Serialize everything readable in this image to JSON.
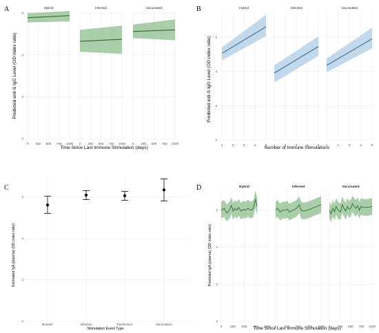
{
  "colors": {
    "green_line": "#2e6b2e",
    "green_band": "#86b886",
    "blue_line": "#3d6c8f",
    "blue_band": "#c2d8ec",
    "point": "#000000",
    "gridline": "#ebebeb"
  },
  "chart_data": [
    {
      "panel": "A",
      "type": "line",
      "facets": [
        "Hybrid",
        "Infected",
        "Vaccinated"
      ],
      "xlabel": "Time Since Last Immune Stimulation (days)",
      "ylabel": "Predicted anti-S IgG Level (OD index ratio)",
      "xlim": [
        0,
        1000
      ],
      "ylim": [
        0,
        6
      ],
      "x_ticks": [
        "0",
        "250",
        "500",
        "750",
        "1000"
      ],
      "y_ticks": [
        "0",
        "2",
        "4",
        "6"
      ],
      "grid": true,
      "series": [
        {
          "facet": "Hybrid",
          "x": [
            0,
            1000
          ],
          "y": [
            5.78,
            5.88
          ],
          "lower": [
            5.55,
            5.6
          ],
          "upper": [
            6.0,
            6.1
          ]
        },
        {
          "facet": "Infected",
          "x": [
            0,
            1000
          ],
          "y": [
            4.65,
            4.75
          ],
          "lower": [
            4.15,
            4.05
          ],
          "upper": [
            5.2,
            5.4
          ]
        },
        {
          "facet": "Vaccinated",
          "x": [
            0,
            1000
          ],
          "y": [
            5.12,
            5.2
          ],
          "lower": [
            4.8,
            4.7
          ],
          "upper": [
            5.45,
            5.7
          ]
        }
      ]
    },
    {
      "panel": "B",
      "type": "line",
      "facets": [
        "Hybrid",
        "Infected",
        "Vaccinated"
      ],
      "xlabel": "Number of Immune Stimulations",
      "ylabel": "Predicted anti-S IgG Level (OD index ratio)",
      "xlim": [
        1,
        5
      ],
      "ylim": [
        0,
        7.4
      ],
      "x_ticks": [
        "1",
        "2",
        "3",
        "4",
        "5"
      ],
      "y_ticks": [
        "0",
        "2",
        "4",
        "6"
      ],
      "grid": true,
      "series": [
        {
          "facet": "Hybrid",
          "x": [
            1,
            5
          ],
          "y": [
            5.05,
            6.6
          ],
          "lower": [
            4.65,
            6.05
          ],
          "upper": [
            5.4,
            7.3
          ]
        },
        {
          "facet": "Infected",
          "x": [
            1,
            5
          ],
          "y": [
            3.9,
            5.45
          ],
          "lower": [
            3.35,
            4.9
          ],
          "upper": [
            4.35,
            6.05
          ]
        },
        {
          "facet": "Vaccinated",
          "x": [
            1,
            5
          ],
          "y": [
            4.35,
            5.9
          ],
          "lower": [
            3.95,
            5.35
          ],
          "upper": [
            4.75,
            6.55
          ]
        }
      ]
    },
    {
      "panel": "C",
      "type": "scatter",
      "xlabel": "Stimulation Event Type",
      "ylabel": "Estimated IgA (plasma) (OD index ratio)",
      "categories": [
        "Booster",
        "Infection",
        "Reinfection",
        "Vaccination"
      ],
      "values": [
        5.62,
        6.1,
        6.07,
        6.35
      ],
      "lower": [
        5.22,
        5.88,
        5.85,
        5.82
      ],
      "upper": [
        6.05,
        6.32,
        6.28,
        6.88
      ],
      "ylim": [
        0,
        7
      ],
      "y_ticks": [
        "0",
        "2",
        "4",
        "6"
      ],
      "grid": true
    },
    {
      "panel": "D",
      "type": "line",
      "facets": [
        "Hybrid",
        "Infected",
        "Vaccinated"
      ],
      "xlabel": "Time Since Last Immune Stimulation (days)",
      "ylabel": "Predicted IgA (plasma) (OD index ratio)",
      "xlim": [
        0,
        1000
      ],
      "ylim": [
        0,
        7
      ],
      "x_ticks": [
        "0",
        "250",
        "500",
        "750",
        "1000"
      ],
      "y_ticks": [
        "0",
        "2",
        "4",
        "6"
      ],
      "grid": true,
      "series": [
        {
          "facet": "Hybrid",
          "x": [
            0,
            60,
            120,
            180,
            220,
            260,
            300,
            340,
            380,
            430,
            480,
            520,
            580,
            640,
            700,
            740,
            780
          ],
          "y": [
            6.0,
            6.1,
            5.85,
            6.0,
            6.25,
            5.95,
            6.1,
            6.0,
            6.15,
            5.95,
            6.05,
            6.0,
            6.1,
            6.0,
            6.1,
            6.6,
            6.2
          ]
        },
        {
          "facet": "Infected",
          "x": [
            0,
            40,
            100,
            160,
            220,
            260,
            300,
            380,
            460,
            520,
            560,
            620,
            700,
            800,
            900,
            1000
          ],
          "y": [
            6.0,
            6.1,
            5.9,
            6.0,
            6.0,
            6.05,
            5.9,
            6.0,
            6.1,
            6.3,
            6.0,
            5.95,
            6.0,
            6.1,
            6.2,
            6.3
          ]
        },
        {
          "facet": "Vaccinated",
          "x": [
            0,
            40,
            80,
            120,
            160,
            200,
            260,
            300,
            340,
            380,
            420,
            460,
            500,
            540,
            580,
            620,
            660,
            700,
            740,
            800,
            900,
            1000
          ],
          "y": [
            6.0,
            5.8,
            6.1,
            5.9,
            6.2,
            6.0,
            5.9,
            6.3,
            6.1,
            5.95,
            6.2,
            6.05,
            6.1,
            6.35,
            6.2,
            6.1,
            6.25,
            6.0,
            6.2,
            6.15,
            6.15,
            6.2
          ]
        }
      ]
    }
  ]
}
